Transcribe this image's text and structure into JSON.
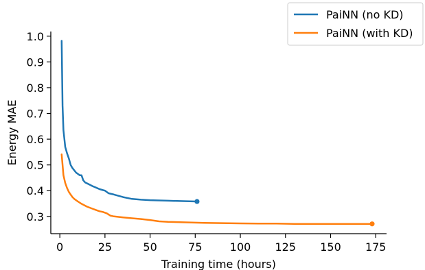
{
  "chart_data": {
    "type": "line",
    "title": "",
    "xlabel": "Training time (hours)",
    "ylabel": "Energy MAE",
    "xlim": [
      -5,
      181
    ],
    "ylim": [
      0.233,
      1.018
    ],
    "xticks": [
      0,
      25,
      50,
      75,
      100,
      125,
      150,
      175
    ],
    "yticks": [
      0.3,
      0.4,
      0.5,
      0.6,
      0.7,
      0.8,
      0.9,
      1.0
    ],
    "xtick_labels": [
      "0",
      "25",
      "50",
      "75",
      "100",
      "125",
      "150",
      "175"
    ],
    "ytick_labels": [
      "0.3",
      "0.4",
      "0.5",
      "0.6",
      "0.7",
      "0.8",
      "0.9",
      "1.0"
    ],
    "grid": false,
    "legend_position": "top-right",
    "series": [
      {
        "name": "PaiNN (no KD)",
        "color": "#1f77b4",
        "end_marker": true,
        "x": [
          1,
          1.5,
          2,
          3,
          4,
          5,
          6,
          7,
          8,
          9,
          10,
          11,
          12,
          13,
          14,
          16,
          18,
          20,
          22,
          24,
          25,
          27,
          30,
          35,
          40,
          45,
          50,
          55,
          60,
          65,
          70,
          76
        ],
        "y": [
          0.982,
          0.73,
          0.635,
          0.57,
          0.545,
          0.525,
          0.5,
          0.488,
          0.479,
          0.47,
          0.465,
          0.46,
          0.46,
          0.44,
          0.432,
          0.425,
          0.418,
          0.412,
          0.406,
          0.402,
          0.4,
          0.39,
          0.385,
          0.375,
          0.368,
          0.365,
          0.363,
          0.362,
          0.361,
          0.36,
          0.359,
          0.358
        ]
      },
      {
        "name": "PaiNN (with KD)",
        "color": "#ff7f0e",
        "end_marker": true,
        "x": [
          1,
          2,
          3,
          4,
          5,
          6,
          7,
          8,
          10,
          12,
          15,
          18,
          20,
          22,
          24,
          26,
          28,
          30,
          35,
          40,
          45,
          50,
          55,
          60,
          70,
          80,
          90,
          100,
          110,
          120,
          130,
          140,
          150,
          160,
          173
        ],
        "y": [
          0.541,
          0.46,
          0.43,
          0.41,
          0.395,
          0.385,
          0.375,
          0.368,
          0.358,
          0.349,
          0.338,
          0.33,
          0.325,
          0.32,
          0.317,
          0.312,
          0.303,
          0.3,
          0.296,
          0.293,
          0.29,
          0.286,
          0.281,
          0.279,
          0.277,
          0.275,
          0.274,
          0.273,
          0.272,
          0.272,
          0.271,
          0.271,
          0.271,
          0.271,
          0.271
        ]
      }
    ]
  }
}
